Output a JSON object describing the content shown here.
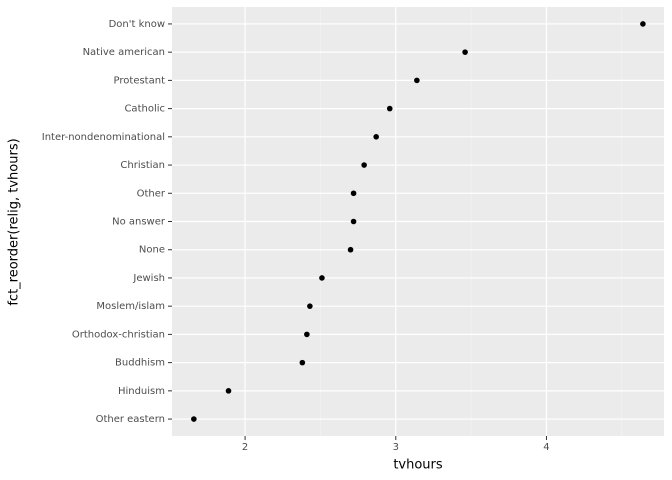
{
  "chart_data": {
    "type": "scatter",
    "xlabel": "tvhours",
    "ylabel": "fct_reorder(relig, tvhours)",
    "categories": [
      "Other eastern",
      "Hinduism",
      "Buddhism",
      "Orthodox-christian",
      "Moslem/islam",
      "Jewish",
      "None",
      "No answer",
      "Other",
      "Christian",
      "Inter-nondenominational",
      "Catholic",
      "Protestant",
      "Native american",
      "Don't know"
    ],
    "values": [
      1.66,
      1.89,
      2.38,
      2.41,
      2.43,
      2.51,
      2.7,
      2.72,
      2.72,
      2.79,
      2.87,
      2.96,
      3.14,
      3.46,
      4.64
    ],
    "color": "#000000",
    "xlim": [
      1.515,
      4.78
    ],
    "xticks": [
      2,
      3,
      4
    ],
    "xminor": [
      2.5,
      3.5,
      4.5
    ],
    "grid": true
  }
}
